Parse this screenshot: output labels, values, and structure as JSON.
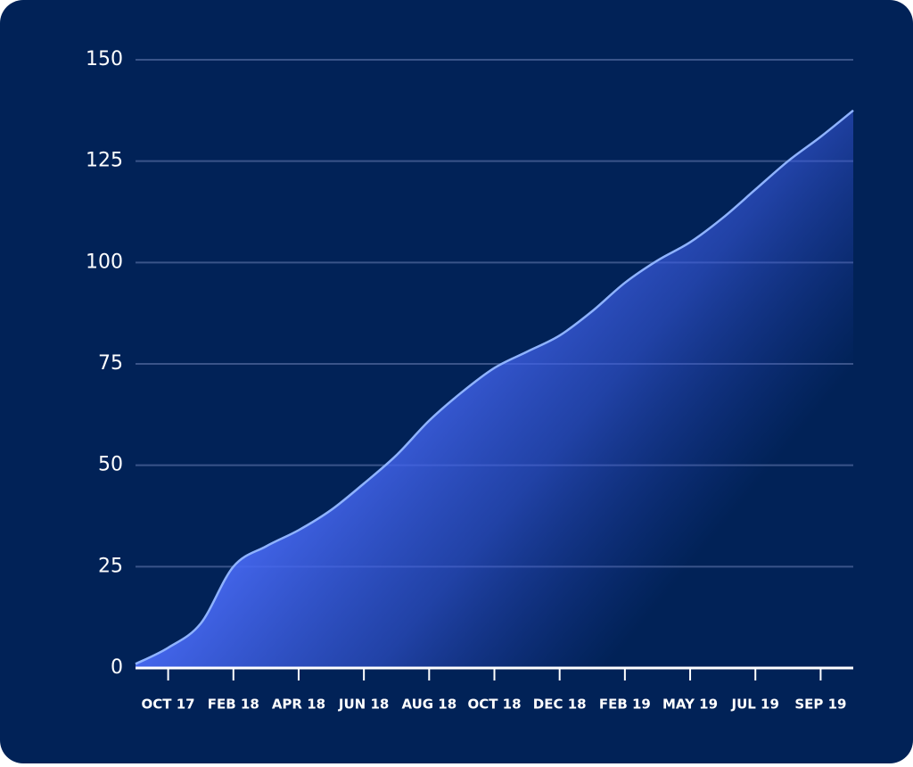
{
  "chart_data": {
    "type": "area",
    "categories": [
      null,
      "OCT 17",
      null,
      "FEB 18",
      null,
      "APR 18",
      null,
      "JUN 18",
      null,
      "AUG 18",
      null,
      "OCT 18",
      null,
      "DEC 18",
      null,
      "FEB 19",
      null,
      "MAY 19",
      null,
      "JUL 19",
      null,
      "SEP 19",
      null
    ],
    "values": [
      1,
      5,
      11,
      25,
      30,
      34,
      39,
      45.5,
      52.5,
      61,
      68,
      74,
      78,
      82,
      88,
      95,
      100.5,
      105,
      111,
      118,
      125,
      131,
      137.5
    ],
    "color": "#8fb3ff",
    "ylim": [
      0,
      150
    ],
    "yticks": [
      0,
      25,
      50,
      75,
      100,
      125,
      150
    ],
    "grid": true
  }
}
